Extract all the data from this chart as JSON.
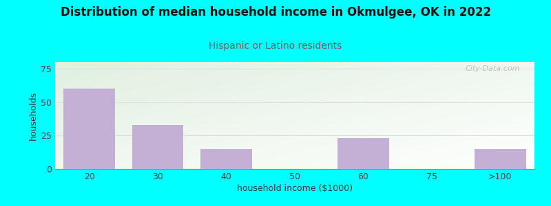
{
  "title": "Distribution of median household income in Okmulgee, OK in 2022",
  "subtitle": "Hispanic or Latino residents",
  "xlabel": "household income ($1000)",
  "ylabel": "households",
  "background_color": "#00FFFF",
  "plot_bg_top_left": "#dff0df",
  "plot_bg_bottom_right": "#ffffff",
  "bar_color": "#c5b0d5",
  "bar_edge_color": "#b09cc0",
  "categories": [
    "20",
    "30",
    "40",
    "50",
    "60",
    "75",
    ">100"
  ],
  "values": [
    60,
    33,
    15,
    0,
    23,
    0,
    15
  ],
  "ylim": [
    0,
    80
  ],
  "yticks": [
    0,
    25,
    50,
    75
  ],
  "grid_color": "#e0e0e0",
  "title_fontsize": 12,
  "subtitle_fontsize": 10,
  "subtitle_color": "#7a5c5c",
  "axis_label_fontsize": 9,
  "tick_fontsize": 9,
  "watermark_text": "City-Data.com",
  "watermark_color": "#b0b8c0"
}
